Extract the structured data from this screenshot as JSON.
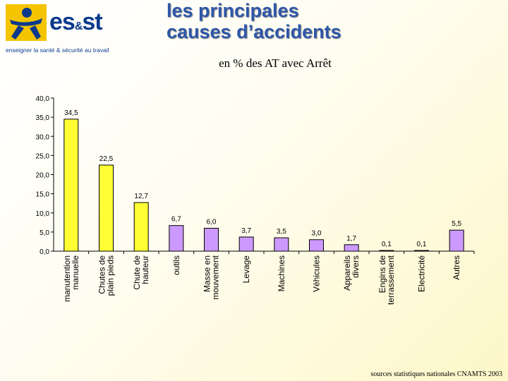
{
  "logo": {
    "brand_main": "es",
    "brand_amp": "&",
    "brand_end": "st",
    "tagline": "enseigner la santé & sécurité au travail"
  },
  "title": {
    "line1": "les principales",
    "line2": "causes d’accidents"
  },
  "subtitle": "en % des AT avec Arrêt",
  "source": "sources statistiques nationales CNAMTS 2003",
  "colors": {
    "highlight": "#ffff33",
    "normal": "#cc99ff",
    "title": "#2f57a8"
  },
  "chart_data": {
    "type": "bar",
    "title": "",
    "xlabel": "",
    "ylabel": "",
    "ylim": [
      0,
      40
    ],
    "yticks": [
      "0,0",
      "5,0",
      "10,0",
      "15,0",
      "20,0",
      "25,0",
      "30,0",
      "35,0",
      "40,0"
    ],
    "categories": [
      [
        "manutention",
        "manuelle"
      ],
      [
        "Chutes de",
        "plain pieds"
      ],
      [
        "Chute de",
        "hauteur"
      ],
      [
        "outils"
      ],
      [
        "Masse en",
        "mouvement"
      ],
      [
        "Levage"
      ],
      [
        "Machines"
      ],
      [
        "Véhicules"
      ],
      [
        "Appareils",
        "divers"
      ],
      [
        "Engins de",
        "terrassement"
      ],
      [
        "Electricité"
      ],
      [
        "Autres"
      ]
    ],
    "values": [
      34.5,
      22.5,
      12.7,
      6.7,
      6.0,
      3.7,
      3.5,
      3.0,
      1.7,
      0.1,
      0.1,
      5.5
    ],
    "value_labels": [
      "34,5",
      "22,5",
      "12,7",
      "6,7",
      "6,0",
      "3,7",
      "3,5",
      "3,0",
      "1,7",
      "0,1",
      "0,1",
      "5,5"
    ],
    "highlighted": [
      true,
      true,
      true,
      false,
      false,
      false,
      false,
      false,
      false,
      false,
      false,
      false
    ],
    "grid": false
  }
}
